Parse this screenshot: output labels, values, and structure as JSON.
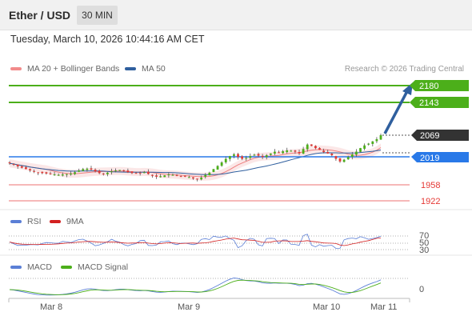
{
  "header": {
    "title": "Ether / USD",
    "timeframe": "30 MIN",
    "datetime": "Tuesday, March 10, 2026 10:44:16 AM CET"
  },
  "legend_main": [
    {
      "label": "MA 20 + Bollinger Bands",
      "color": "#f28b8b"
    },
    {
      "label": "MA 50",
      "color": "#2f5f9e"
    }
  ],
  "credit": "Research © 2026 Trading Central",
  "levels": {
    "resistance": [
      {
        "value": "2180",
        "color": "#4caf1a"
      },
      {
        "value": "2143",
        "color": "#4caf1a"
      }
    ],
    "current": {
      "value": "2069",
      "color": "#333333"
    },
    "pivot": {
      "value": "2019",
      "color": "#2979e8"
    },
    "support": [
      {
        "value": "1958",
        "color": "#e53935"
      },
      {
        "value": "1922",
        "color": "#e53935"
      }
    ]
  },
  "rsi_panel": {
    "legend": [
      {
        "label": "RSI",
        "color": "#5b7fd6"
      },
      {
        "label": "9MA",
        "color": "#d32020"
      }
    ],
    "levels": [
      "70",
      "50",
      "30"
    ]
  },
  "macd_panel": {
    "legend": [
      {
        "label": "MACD",
        "color": "#5b7fd6"
      },
      {
        "label": "MACD Signal",
        "color": "#4caf1a"
      }
    ],
    "zero_label": "0"
  },
  "x_axis": [
    "Mar 8",
    "Mar 9",
    "Mar 10",
    "Mar 11"
  ],
  "chart_data": {
    "type": "candlestick",
    "price_scale": {
      "min": 1900,
      "max": 2200
    },
    "candle_count": 92,
    "seed_path": [
      2006,
      2003,
      1999,
      1996,
      1993,
      1990,
      1987,
      1985,
      1984,
      1983,
      1982,
      1981,
      1980,
      1981,
      1982,
      1983,
      1986,
      1990,
      1993,
      1994,
      1992,
      1988,
      1984,
      1983,
      1985,
      1988,
      1990,
      1991,
      1989,
      1986,
      1984,
      1983,
      1984,
      1986,
      1982,
      1978,
      1976,
      1977,
      1979,
      1981,
      1980,
      1978,
      1977,
      1976,
      1975,
      1972,
      1970,
      1974,
      1980,
      1985,
      1993,
      2000,
      2008,
      2016,
      2022,
      2026,
      2020,
      2016,
      2018,
      2022,
      2025,
      2023,
      2020,
      2024,
      2028,
      2032,
      2030,
      2033,
      2035,
      2034,
      2032,
      2028,
      2038,
      2048,
      2045,
      2040,
      2036,
      2031,
      2028,
      2024,
      2016,
      2010,
      2014,
      2020,
      2026,
      2032,
      2040,
      2046,
      2050,
      2055,
      2060,
      2069
    ],
    "projection": {
      "from": "2069",
      "to": "2180"
    }
  }
}
